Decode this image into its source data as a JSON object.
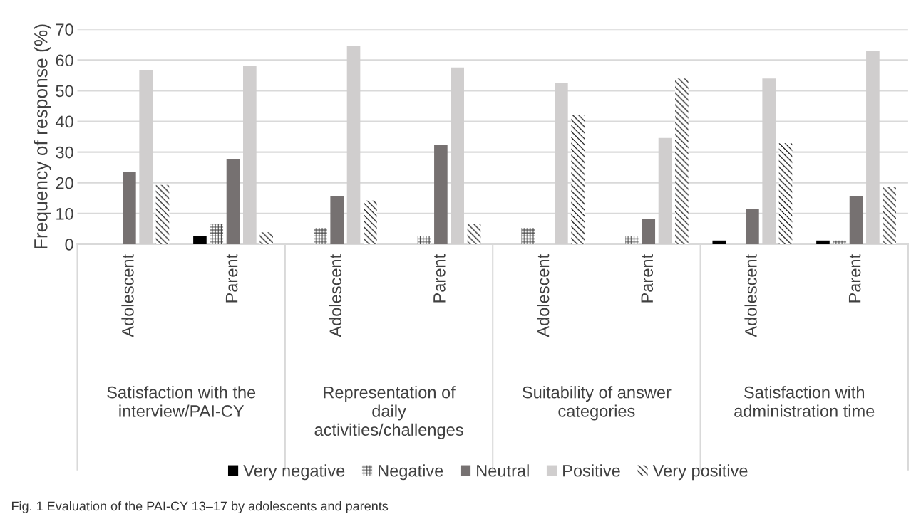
{
  "chart_data": {
    "type": "bar",
    "ylabel": "Frequency of response (%)",
    "categories": [
      "Adolescent",
      "Parent",
      "Adolescent",
      "Parent",
      "Adolescent",
      "Parent",
      "Adolescent",
      "Parent"
    ],
    "series": [
      {
        "name": "Very negative",
        "color": "#000000",
        "values": [
          0,
          2.6,
          0,
          0,
          0,
          0,
          1.2,
          1.2
        ]
      },
      {
        "name": "Negative",
        "color": "#404040",
        "values": [
          0,
          6.6,
          5.3,
          2.7,
          5.3,
          2.7,
          0,
          1.2
        ]
      },
      {
        "name": "Neutral",
        "color": "#767171",
        "values": [
          23.4,
          27.6,
          15.7,
          32.4,
          0,
          8.3,
          11.6,
          15.7
        ]
      },
      {
        "name": "Positive",
        "color": "#d0cece",
        "values": [
          56.6,
          58.1,
          64.5,
          57.6,
          52.4,
          34.6,
          54.0,
          62.9
        ]
      },
      {
        "name": "Very positive",
        "color": "#000000",
        "values": [
          19.3,
          3.9,
          14.2,
          6.7,
          42.1,
          54.0,
          32.9,
          18.7
        ]
      }
    ],
    "ylim": [
      0,
      70
    ],
    "yticks": [
      0,
      10,
      20,
      30,
      40,
      50,
      60,
      70
    ],
    "grid": "y",
    "legend": "bottom",
    "annotations": [
      "Satisfaction with the\ninterview/PAI-CY",
      "Representation of\ndaily\nactivities/challenges",
      "Suitability of answer\ncategories",
      "Satisfaction with\nadministration time",
      "Fig. 1 Evaluation of the PAI-CY 13–17 by adolescents and parents"
    ]
  }
}
